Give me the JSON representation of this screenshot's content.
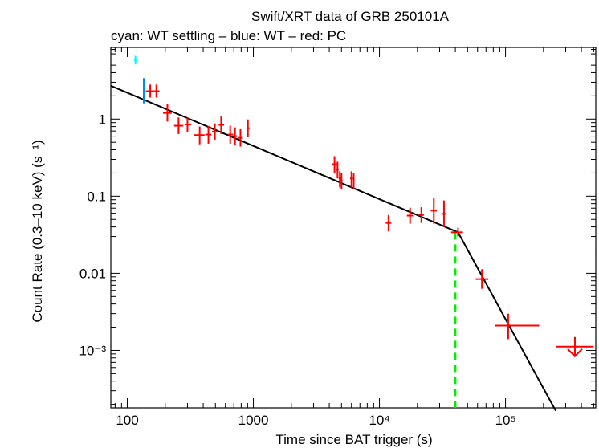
{
  "chart_data": {
    "type": "scatter",
    "title": "Swift/XRT data of GRB 250101A",
    "subtitle": "cyan: WT settling – blue: WT – red: PC",
    "xlabel": "Time since BAT trigger (s)",
    "ylabel": "Count Rate (0.3–10 keV) (s⁻¹)",
    "xscale": "log",
    "yscale": "log",
    "xlim": [
      74,
      520000
    ],
    "ylim": [
      0.00018,
      8.5
    ],
    "x_ticks": [
      {
        "value": 100,
        "label": "100"
      },
      {
        "value": 1000,
        "label": "1000"
      },
      {
        "value": 10000,
        "label": "10⁴"
      },
      {
        "value": 100000,
        "label": "10⁵"
      }
    ],
    "y_ticks": [
      {
        "value": 1,
        "label": "1"
      },
      {
        "value": 0.1,
        "label": "0.1"
      },
      {
        "value": 0.01,
        "label": "0.01"
      },
      {
        "value": 0.001,
        "label": "10⁻³"
      }
    ],
    "colors": {
      "wt_settling": "#00ffff",
      "wt": "#0088ee",
      "pc": "#ff0000",
      "fit": "#000000",
      "break": "#00ee00"
    },
    "series": [
      {
        "name": "WT settling",
        "color": "#00ffff",
        "points": [
          {
            "t": 116,
            "tlo": 113,
            "thi": 119,
            "r": 5.8,
            "rlo": 5.1,
            "rhi": 6.6
          }
        ]
      },
      {
        "name": "WT",
        "color": "#0088ee",
        "points": [
          {
            "t": 135,
            "tlo": 133,
            "thi": 137,
            "r": 2.4,
            "rlo": 1.6,
            "rhi": 3.4
          }
        ]
      },
      {
        "name": "PC",
        "color": "#ff0000",
        "points": [
          {
            "t": 152,
            "tlo": 140,
            "thi": 162,
            "r": 2.3,
            "rlo": 1.9,
            "rhi": 2.8
          },
          {
            "t": 170,
            "tlo": 162,
            "thi": 180,
            "r": 2.3,
            "rlo": 1.9,
            "rhi": 2.8
          },
          {
            "t": 208,
            "tlo": 192,
            "thi": 225,
            "r": 1.2,
            "rlo": 0.93,
            "rhi": 1.55
          },
          {
            "t": 255,
            "tlo": 235,
            "thi": 278,
            "r": 0.82,
            "rlo": 0.64,
            "rhi": 1.05
          },
          {
            "t": 300,
            "tlo": 285,
            "thi": 322,
            "r": 0.85,
            "rlo": 0.67,
            "rhi": 1.05
          },
          {
            "t": 375,
            "tlo": 340,
            "thi": 410,
            "r": 0.62,
            "rlo": 0.47,
            "rhi": 0.8
          },
          {
            "t": 440,
            "tlo": 415,
            "thi": 465,
            "r": 0.63,
            "rlo": 0.48,
            "rhi": 0.81
          },
          {
            "t": 495,
            "tlo": 470,
            "thi": 525,
            "r": 0.69,
            "rlo": 0.54,
            "rhi": 0.88
          },
          {
            "t": 555,
            "tlo": 530,
            "thi": 585,
            "r": 0.84,
            "rlo": 0.64,
            "rhi": 1.08
          },
          {
            "t": 655,
            "tlo": 625,
            "thi": 690,
            "r": 0.63,
            "rlo": 0.48,
            "rhi": 0.82
          },
          {
            "t": 715,
            "tlo": 690,
            "thi": 745,
            "r": 0.6,
            "rlo": 0.46,
            "rhi": 0.78
          },
          {
            "t": 790,
            "tlo": 760,
            "thi": 825,
            "r": 0.57,
            "rlo": 0.44,
            "rhi": 0.74
          },
          {
            "t": 905,
            "tlo": 880,
            "thi": 935,
            "r": 0.76,
            "rlo": 0.58,
            "rhi": 0.99
          },
          {
            "t": 4400,
            "tlo": 4200,
            "thi": 4600,
            "r": 0.26,
            "rlo": 0.2,
            "rhi": 0.33
          },
          {
            "t": 4650,
            "tlo": 4550,
            "thi": 4750,
            "r": 0.22,
            "rlo": 0.17,
            "rhi": 0.28
          },
          {
            "t": 4850,
            "tlo": 4750,
            "thi": 4950,
            "r": 0.17,
            "rlo": 0.13,
            "rhi": 0.21
          },
          {
            "t": 5000,
            "tlo": 4900,
            "thi": 5100,
            "r": 0.16,
            "rlo": 0.125,
            "rhi": 0.2
          },
          {
            "t": 6000,
            "tlo": 5850,
            "thi": 6150,
            "r": 0.17,
            "rlo": 0.13,
            "rhi": 0.21
          },
          {
            "t": 6250,
            "tlo": 6150,
            "thi": 6350,
            "r": 0.16,
            "rlo": 0.125,
            "rhi": 0.2
          },
          {
            "t": 11800,
            "tlo": 11200,
            "thi": 12400,
            "r": 0.045,
            "rlo": 0.035,
            "rhi": 0.057
          },
          {
            "t": 17500,
            "tlo": 16500,
            "thi": 18500,
            "r": 0.056,
            "rlo": 0.044,
            "rhi": 0.071
          },
          {
            "t": 21500,
            "tlo": 20500,
            "thi": 22500,
            "r": 0.057,
            "rlo": 0.045,
            "rhi": 0.072
          },
          {
            "t": 27000,
            "tlo": 25500,
            "thi": 28500,
            "r": 0.065,
            "rlo": 0.044,
            "rhi": 0.095
          },
          {
            "t": 32500,
            "tlo": 31000,
            "thi": 34000,
            "r": 0.059,
            "rlo": 0.04,
            "rhi": 0.088
          },
          {
            "t": 42000,
            "tlo": 37000,
            "thi": 46000,
            "r": 0.034,
            "rlo": 0.03,
            "rhi": 0.039
          },
          {
            "t": 65000,
            "tlo": 58000,
            "thi": 73000,
            "r": 0.0084,
            "rlo": 0.0063,
            "rhi": 0.0113
          },
          {
            "t": 105000,
            "tlo": 82000,
            "thi": 185000,
            "r": 0.0021,
            "rlo": 0.0014,
            "rhi": 0.003
          }
        ]
      }
    ],
    "upper_limits": [
      {
        "t": 355000,
        "tlo": 250000,
        "thi": 500000,
        "r": 0.00112,
        "color": "#ff0000"
      }
    ],
    "model": {
      "name": "broken power law",
      "points": [
        {
          "t": 74,
          "r": 2.7
        },
        {
          "t": 42000,
          "r": 0.034
        },
        {
          "t": 250000,
          "r": 0.000165
        }
      ]
    },
    "break_time": {
      "t": 40000,
      "r": 0.034,
      "color": "#00ee00"
    }
  }
}
